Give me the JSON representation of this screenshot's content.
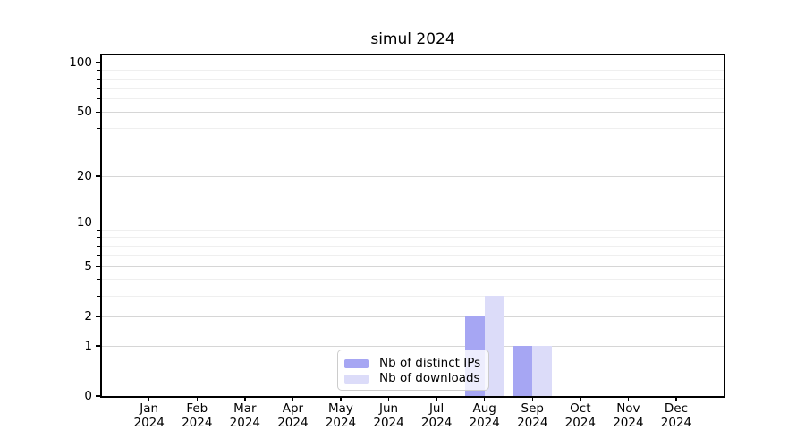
{
  "chart_data": {
    "type": "bar",
    "title": "simul 2024",
    "xlabel": "",
    "ylabel": "",
    "categories": [
      "Jan 2024",
      "Feb 2024",
      "Mar 2024",
      "Apr 2024",
      "May 2024",
      "Jun 2024",
      "Jul 2024",
      "Aug 2024",
      "Sep 2024",
      "Oct 2024",
      "Nov 2024",
      "Dec 2024"
    ],
    "series": [
      {
        "name": "Nb of distinct IPs",
        "color": "#a6a6f3",
        "values": [
          0,
          0,
          0,
          0,
          0,
          0,
          0,
          2,
          1,
          0,
          0,
          0
        ]
      },
      {
        "name": "Nb of downloads",
        "color": "#dcdcf9",
        "values": [
          0,
          0,
          0,
          0,
          0,
          0,
          0,
          3,
          1,
          0,
          0,
          0
        ]
      }
    ],
    "y_axis": {
      "scale": "log1p",
      "ylim": [
        0,
        113
      ],
      "tick_labels": [
        0,
        1,
        2,
        5,
        10,
        20,
        50,
        100
      ],
      "strong_grid_values": [
        10,
        100
      ],
      "medium_grid_values": [
        1,
        2,
        5,
        20,
        50
      ],
      "minor_grid_values": [
        3,
        4,
        6,
        7,
        8,
        9,
        30,
        40,
        60,
        70,
        80,
        90
      ]
    },
    "legend": {
      "position": "lower center",
      "entries": [
        "Nb of distinct IPs",
        "Nb of downloads"
      ]
    },
    "grid": true,
    "style": {
      "strong_grid_color": "#bdbdbd",
      "medium_grid_color": "#d6d6d6",
      "minor_grid_color": "#efefef"
    }
  }
}
